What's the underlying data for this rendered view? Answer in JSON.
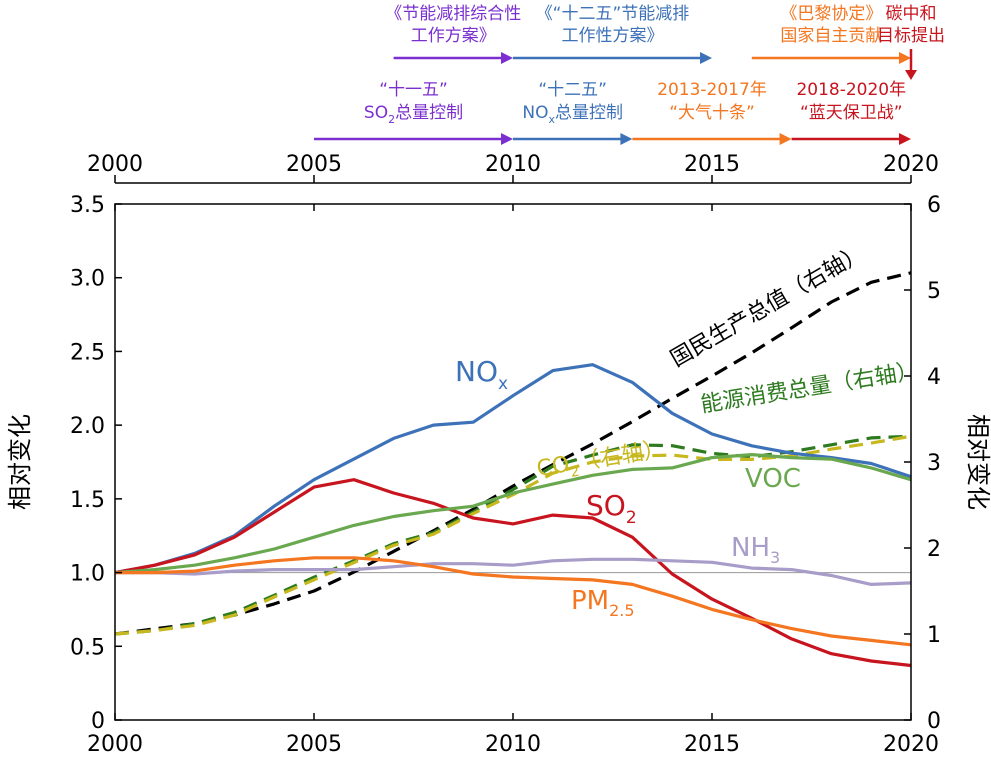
{
  "chart_data": {
    "type": "line",
    "x_range": [
      2000,
      2020
    ],
    "x_ticks": [
      2000,
      2005,
      2010,
      2015,
      2020
    ],
    "x_tick_labels": [
      "2000",
      "2005",
      "2010",
      "2015",
      "2020"
    ],
    "left_axis": {
      "label": "相对变化",
      "range": [
        0,
        3.5
      ],
      "ticks": [
        0,
        0.5,
        1.0,
        1.5,
        2.0,
        2.5,
        3.0,
        3.5
      ],
      "tick_labels": [
        "0",
        "0.5",
        "1.0",
        "1.5",
        "2.0",
        "2.5",
        "3.0",
        "3.5"
      ]
    },
    "right_axis": {
      "label": "相对变化",
      "range": [
        0,
        6
      ],
      "ticks": [
        0,
        1,
        2,
        3,
        4,
        5,
        6
      ],
      "tick_labels": [
        "0",
        "1",
        "2",
        "3",
        "4",
        "5",
        "6"
      ]
    },
    "reference_line": 1.0,
    "series": [
      {
        "name": "NO",
        "sub": "x",
        "axis": "left",
        "color": "#3d72b9",
        "dash": false,
        "x": [
          2000,
          2001,
          2002,
          2003,
          2004,
          2005,
          2006,
          2007,
          2008,
          2009,
          2010,
          2011,
          2012,
          2013,
          2014,
          2015,
          2016,
          2017,
          2018,
          2019,
          2020
        ],
        "values": [
          1.0,
          1.05,
          1.13,
          1.25,
          1.45,
          1.63,
          1.77,
          1.91,
          2.0,
          2.02,
          2.2,
          2.37,
          2.41,
          2.29,
          2.08,
          1.94,
          1.86,
          1.81,
          1.78,
          1.74,
          1.65
        ]
      },
      {
        "name": "SO",
        "sub": "2",
        "axis": "left",
        "color": "#c8141e",
        "dash": false,
        "x": [
          2000,
          2001,
          2002,
          2003,
          2004,
          2005,
          2006,
          2007,
          2008,
          2009,
          2010,
          2011,
          2012,
          2013,
          2014,
          2015,
          2016,
          2017,
          2018,
          2019,
          2020
        ],
        "values": [
          1.0,
          1.05,
          1.12,
          1.24,
          1.41,
          1.58,
          1.63,
          1.54,
          1.47,
          1.37,
          1.33,
          1.39,
          1.37,
          1.24,
          0.99,
          0.82,
          0.69,
          0.55,
          0.45,
          0.4,
          0.37
        ]
      },
      {
        "name": "VOC",
        "sub": "",
        "axis": "left",
        "color": "#6aa84f",
        "dash": false,
        "x": [
          2000,
          2001,
          2002,
          2003,
          2004,
          2005,
          2006,
          2007,
          2008,
          2009,
          2010,
          2011,
          2012,
          2013,
          2014,
          2015,
          2016,
          2017,
          2018,
          2019,
          2020
        ],
        "values": [
          1.0,
          1.02,
          1.05,
          1.1,
          1.16,
          1.24,
          1.32,
          1.38,
          1.42,
          1.45,
          1.54,
          1.6,
          1.66,
          1.7,
          1.71,
          1.78,
          1.8,
          1.78,
          1.77,
          1.71,
          1.63
        ]
      },
      {
        "name": "NH",
        "sub": "3",
        "axis": "left",
        "color": "#a89cc8",
        "dash": false,
        "x": [
          2000,
          2001,
          2002,
          2003,
          2004,
          2005,
          2006,
          2007,
          2008,
          2009,
          2010,
          2011,
          2012,
          2013,
          2014,
          2015,
          2016,
          2017,
          2018,
          2019,
          2020
        ],
        "values": [
          1.0,
          1.0,
          0.99,
          1.01,
          1.02,
          1.02,
          1.02,
          1.04,
          1.06,
          1.06,
          1.05,
          1.08,
          1.09,
          1.09,
          1.08,
          1.07,
          1.03,
          1.02,
          0.98,
          0.92,
          0.93
        ]
      },
      {
        "name": "PM",
        "sub": "2.5",
        "axis": "left",
        "color": "#f47620",
        "dash": false,
        "x": [
          2000,
          2001,
          2002,
          2003,
          2004,
          2005,
          2006,
          2007,
          2008,
          2009,
          2010,
          2011,
          2012,
          2013,
          2014,
          2015,
          2016,
          2017,
          2018,
          2019,
          2020
        ],
        "values": [
          1.0,
          1.0,
          1.01,
          1.05,
          1.08,
          1.1,
          1.1,
          1.08,
          1.04,
          0.99,
          0.97,
          0.96,
          0.95,
          0.92,
          0.84,
          0.75,
          0.68,
          0.62,
          0.57,
          0.54,
          0.51
        ]
      },
      {
        "name": "国民生产总值（右轴）",
        "sub": "",
        "axis": "right",
        "color": "#000000",
        "dash": true,
        "x": [
          2000,
          2001,
          2002,
          2003,
          2004,
          2005,
          2006,
          2007,
          2008,
          2009,
          2010,
          2011,
          2012,
          2013,
          2014,
          2015,
          2016,
          2017,
          2018,
          2019,
          2020
        ],
        "values": [
          1.0,
          1.06,
          1.12,
          1.22,
          1.35,
          1.5,
          1.72,
          1.96,
          2.2,
          2.45,
          2.72,
          2.97,
          3.21,
          3.47,
          3.74,
          4.0,
          4.27,
          4.56,
          4.86,
          5.09,
          5.2
        ]
      },
      {
        "name": "能源消费总量（右轴）",
        "sub": "",
        "axis": "right",
        "color": "#2d7a1f",
        "dash": true,
        "x": [
          2000,
          2001,
          2002,
          2003,
          2004,
          2005,
          2006,
          2007,
          2008,
          2009,
          2010,
          2011,
          2012,
          2013,
          2014,
          2015,
          2016,
          2017,
          2018,
          2019,
          2020
        ],
        "values": [
          1.0,
          1.04,
          1.12,
          1.25,
          1.45,
          1.66,
          1.85,
          2.05,
          2.18,
          2.42,
          2.68,
          2.95,
          3.08,
          3.2,
          3.19,
          3.1,
          3.06,
          3.12,
          3.2,
          3.28,
          3.3
        ]
      },
      {
        "name": "CO",
        "sub": "2",
        "axis": "right",
        "color": "#c8b820",
        "dash": true,
        "x": [
          2000,
          2001,
          2002,
          2003,
          2004,
          2005,
          2006,
          2007,
          2008,
          2009,
          2010,
          2011,
          2012,
          2013,
          2014,
          2015,
          2016,
          2017,
          2018,
          2019,
          2020
        ],
        "values": [
          1.0,
          1.04,
          1.1,
          1.22,
          1.43,
          1.63,
          1.83,
          2.03,
          2.16,
          2.4,
          2.62,
          2.87,
          3.0,
          3.07,
          3.08,
          3.03,
          3.03,
          3.07,
          3.15,
          3.22,
          3.3
        ]
      }
    ],
    "series_labels": [
      {
        "main": "NO",
        "sub": "x",
        "color": "#3d72b9"
      },
      {
        "main": "SO",
        "sub": "2",
        "color": "#c8141e"
      },
      {
        "main": "VOC",
        "sub": "",
        "color": "#6aa84f"
      },
      {
        "main": "NH",
        "sub": "3",
        "color": "#a89cc8"
      },
      {
        "main": "PM",
        "sub": "2.5",
        "color": "#f47620"
      },
      {
        "main": "国民生产总值（右轴）",
        "sub": "",
        "color": "#000000"
      },
      {
        "main": "能源消费总量（右轴）",
        "sub": "",
        "color": "#2d7a1f"
      },
      {
        "main": "CO",
        "sub": "2",
        "suffix": "（右轴）",
        "color": "#c8b820"
      }
    ],
    "policies": [
      {
        "lines": [
          {
            "t": "《节能减排综合性"
          },
          {
            "t": "工作方案》"
          }
        ],
        "start": 2007,
        "end": 2010,
        "color": "#7b2fd0"
      },
      {
        "lines": [
          {
            "t": "《“十二五”节能减排"
          },
          {
            "t": "工作性方案》"
          }
        ],
        "start": 2010,
        "end": 2015,
        "color": "#3d72b9"
      },
      {
        "lines": [
          {
            "t": "《巴黎协定》"
          },
          {
            "t": "国家自主贡献"
          }
        ],
        "start": 2016,
        "end": 2020,
        "color": "#f47620"
      },
      {
        "lines": [
          {
            "t": "碳中和"
          },
          {
            "t": "目标提出"
          }
        ],
        "start": 2020,
        "end": 2020,
        "color": "#c8141e",
        "vertical": true
      },
      {
        "lines": [
          {
            "t": "“十一五”"
          },
          {
            "t": "SO",
            "sub": "2",
            "tail": "总量控制"
          }
        ],
        "start": 2005,
        "end": 2010,
        "color": "#7b2fd0"
      },
      {
        "lines": [
          {
            "t": "“十二五”"
          },
          {
            "t": "NO",
            "sub": "x",
            "tail": "总量控制"
          }
        ],
        "start": 2010,
        "end": 2013,
        "color": "#3d72b9"
      },
      {
        "lines": [
          {
            "t": "2013-2017年"
          },
          {
            "t": "“大气十条”"
          }
        ],
        "start": 2013,
        "end": 2017,
        "color": "#f47620"
      },
      {
        "lines": [
          {
            "t": "2018-2020年"
          },
          {
            "t": "“蓝天保卫战”"
          }
        ],
        "start": 2017,
        "end": 2020,
        "color": "#c8141e"
      }
    ]
  }
}
